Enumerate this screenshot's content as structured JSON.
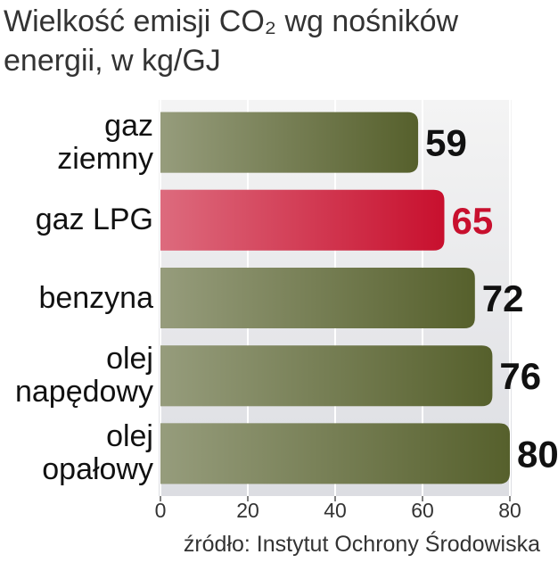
{
  "chart_data": {
    "type": "hbar",
    "title": "Wielkość emisji CO₂ wg nośników energii, w kg/GJ",
    "categories": [
      "gaz\nziemny",
      "gaz LPG",
      "benzyna",
      "olej\nnapędowy",
      "olej\nopałowy"
    ],
    "values": [
      59,
      65,
      72,
      76,
      80
    ],
    "colors": [
      "#56602c",
      "#c8102e",
      "#56602c",
      "#56602c",
      "#56602c"
    ],
    "label_colors": [
      "#111111",
      "#c8102e",
      "#111111",
      "#111111",
      "#111111"
    ],
    "xlim": [
      0,
      80
    ],
    "xticks": [
      0,
      20,
      40,
      60,
      80
    ],
    "grid": true,
    "source": "źródło: Instytut Ochrony Środowiska"
  }
}
